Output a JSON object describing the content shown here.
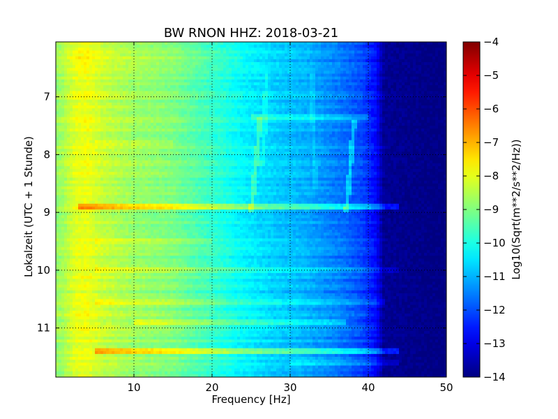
{
  "chart_data": {
    "type": "heatmap",
    "title": "BW RNON HHZ: 2018-03-21",
    "xlabel": "Frequency [Hz]",
    "ylabel": "Lokalzeit (UTC + 1 Stunde)",
    "xlim": [
      0,
      50
    ],
    "ylim": [
      6.05,
      11.85
    ],
    "y_inverted": true,
    "xticks": [
      10,
      20,
      30,
      40,
      50
    ],
    "yticks": [
      7,
      8,
      9,
      10,
      11
    ],
    "grid": true,
    "colorbar": {
      "label": "Log10(Sqrt(m**2/s**2/Hz))",
      "ticks": [
        -4,
        -5,
        -6,
        -7,
        -8,
        -9,
        -10,
        -11,
        -12,
        -13,
        -14
      ],
      "range": [
        -14,
        -4
      ],
      "colormap": "jet"
    },
    "levels": [
      {
        "freq": 0,
        "value": -8.8
      },
      {
        "freq": 1,
        "value": -8.6
      },
      {
        "freq": 2.5,
        "value": -8.0
      },
      {
        "freq": 4,
        "value": -7.9
      },
      {
        "freq": 6,
        "value": -8.3
      },
      {
        "freq": 10,
        "value": -8.7
      },
      {
        "freq": 15,
        "value": -9.0
      },
      {
        "freq": 20,
        "value": -9.7
      },
      {
        "freq": 22,
        "value": -10.0
      },
      {
        "freq": 24,
        "value": -10.3
      },
      {
        "freq": 28,
        "value": -10.7
      },
      {
        "freq": 32,
        "value": -11.0
      },
      {
        "freq": 36,
        "value": -11.5
      },
      {
        "freq": 39,
        "value": -12.0
      },
      {
        "freq": 41,
        "value": -12.7
      },
      {
        "freq": 42,
        "value": -13.8
      },
      {
        "freq": 50,
        "value": -14.0
      }
    ],
    "horizontal_bands": [
      {
        "time": 6.35,
        "freq": [
          0,
          24
        ],
        "delta": 0.3
      },
      {
        "time": 7.35,
        "freq": [
          25,
          40
        ],
        "delta": 0.6
      },
      {
        "time": 7.8,
        "freq": [
          5,
          15
        ],
        "delta": 0.3
      },
      {
        "time": 8.88,
        "freq": [
          3,
          44
        ],
        "delta": 1.2
      },
      {
        "time": 9.52,
        "freq": [
          5,
          20
        ],
        "delta": 0.3
      },
      {
        "time": 9.98,
        "freq": [
          5,
          44
        ],
        "delta": 0.5
      },
      {
        "time": 10.55,
        "freq": [
          5,
          42
        ],
        "delta": 0.5
      },
      {
        "time": 10.88,
        "freq": [
          10,
          37
        ],
        "delta": 0.8
      },
      {
        "time": 11.42,
        "freq": [
          5,
          44
        ],
        "delta": 1.3
      },
      {
        "time": 11.6,
        "freq": [
          30,
          44
        ],
        "delta": 0.5
      }
    ],
    "vertical_lines": [
      {
        "time": [
          7.35,
          9.0
        ],
        "freq": [
          26.2,
          25.0
        ],
        "delta": 0.8
      },
      {
        "time": [
          6.6,
          8.2
        ],
        "freq": [
          27.0,
          26.5
        ],
        "delta": 0.4
      },
      {
        "time": [
          7.4,
          9.0
        ],
        "freq": [
          38.2,
          37.2
        ],
        "delta": 1.0
      },
      {
        "time": [
          6.6,
          8.6
        ],
        "freq": [
          32.8,
          33.2
        ],
        "delta": 0.3
      }
    ]
  }
}
